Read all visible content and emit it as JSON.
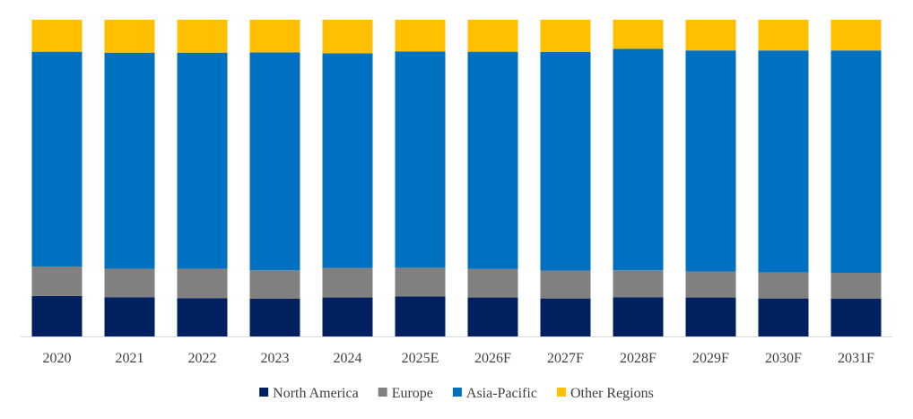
{
  "chart_data": {
    "type": "bar",
    "stacked": true,
    "normalized": true,
    "title": "",
    "xlabel": "",
    "ylabel": "",
    "ylim": [
      0,
      100
    ],
    "categories": [
      "2020",
      "2021",
      "2022",
      "2023",
      "2024",
      "2025E",
      "2026F",
      "2027F",
      "2028F",
      "2029F",
      "2030F",
      "2031F"
    ],
    "series": [
      {
        "name": "North America",
        "color": "#002060",
        "values": [
          12.8,
          12.4,
          12.1,
          11.9,
          12.3,
          12.6,
          12.3,
          12.0,
          12.4,
          12.3,
          12.0,
          11.9
        ]
      },
      {
        "name": "Europe",
        "color": "#808080",
        "values": [
          9.3,
          9.0,
          9.3,
          9.0,
          9.3,
          9.1,
          9.0,
          8.8,
          8.5,
          8.2,
          8.2,
          8.2
        ]
      },
      {
        "name": "Asia-Pacific",
        "color": "#0070C0",
        "values": [
          67.8,
          68.2,
          68.2,
          68.8,
          67.8,
          68.3,
          68.6,
          69.0,
          69.9,
          69.8,
          70.1,
          70.2
        ]
      },
      {
        "name": "Other Regions",
        "color": "#FFC000",
        "values": [
          10.1,
          10.4,
          10.4,
          10.3,
          10.6,
          10.0,
          10.1,
          10.2,
          9.2,
          9.7,
          9.7,
          9.7
        ]
      }
    ],
    "legend_position": "bottom",
    "grid": false
  }
}
